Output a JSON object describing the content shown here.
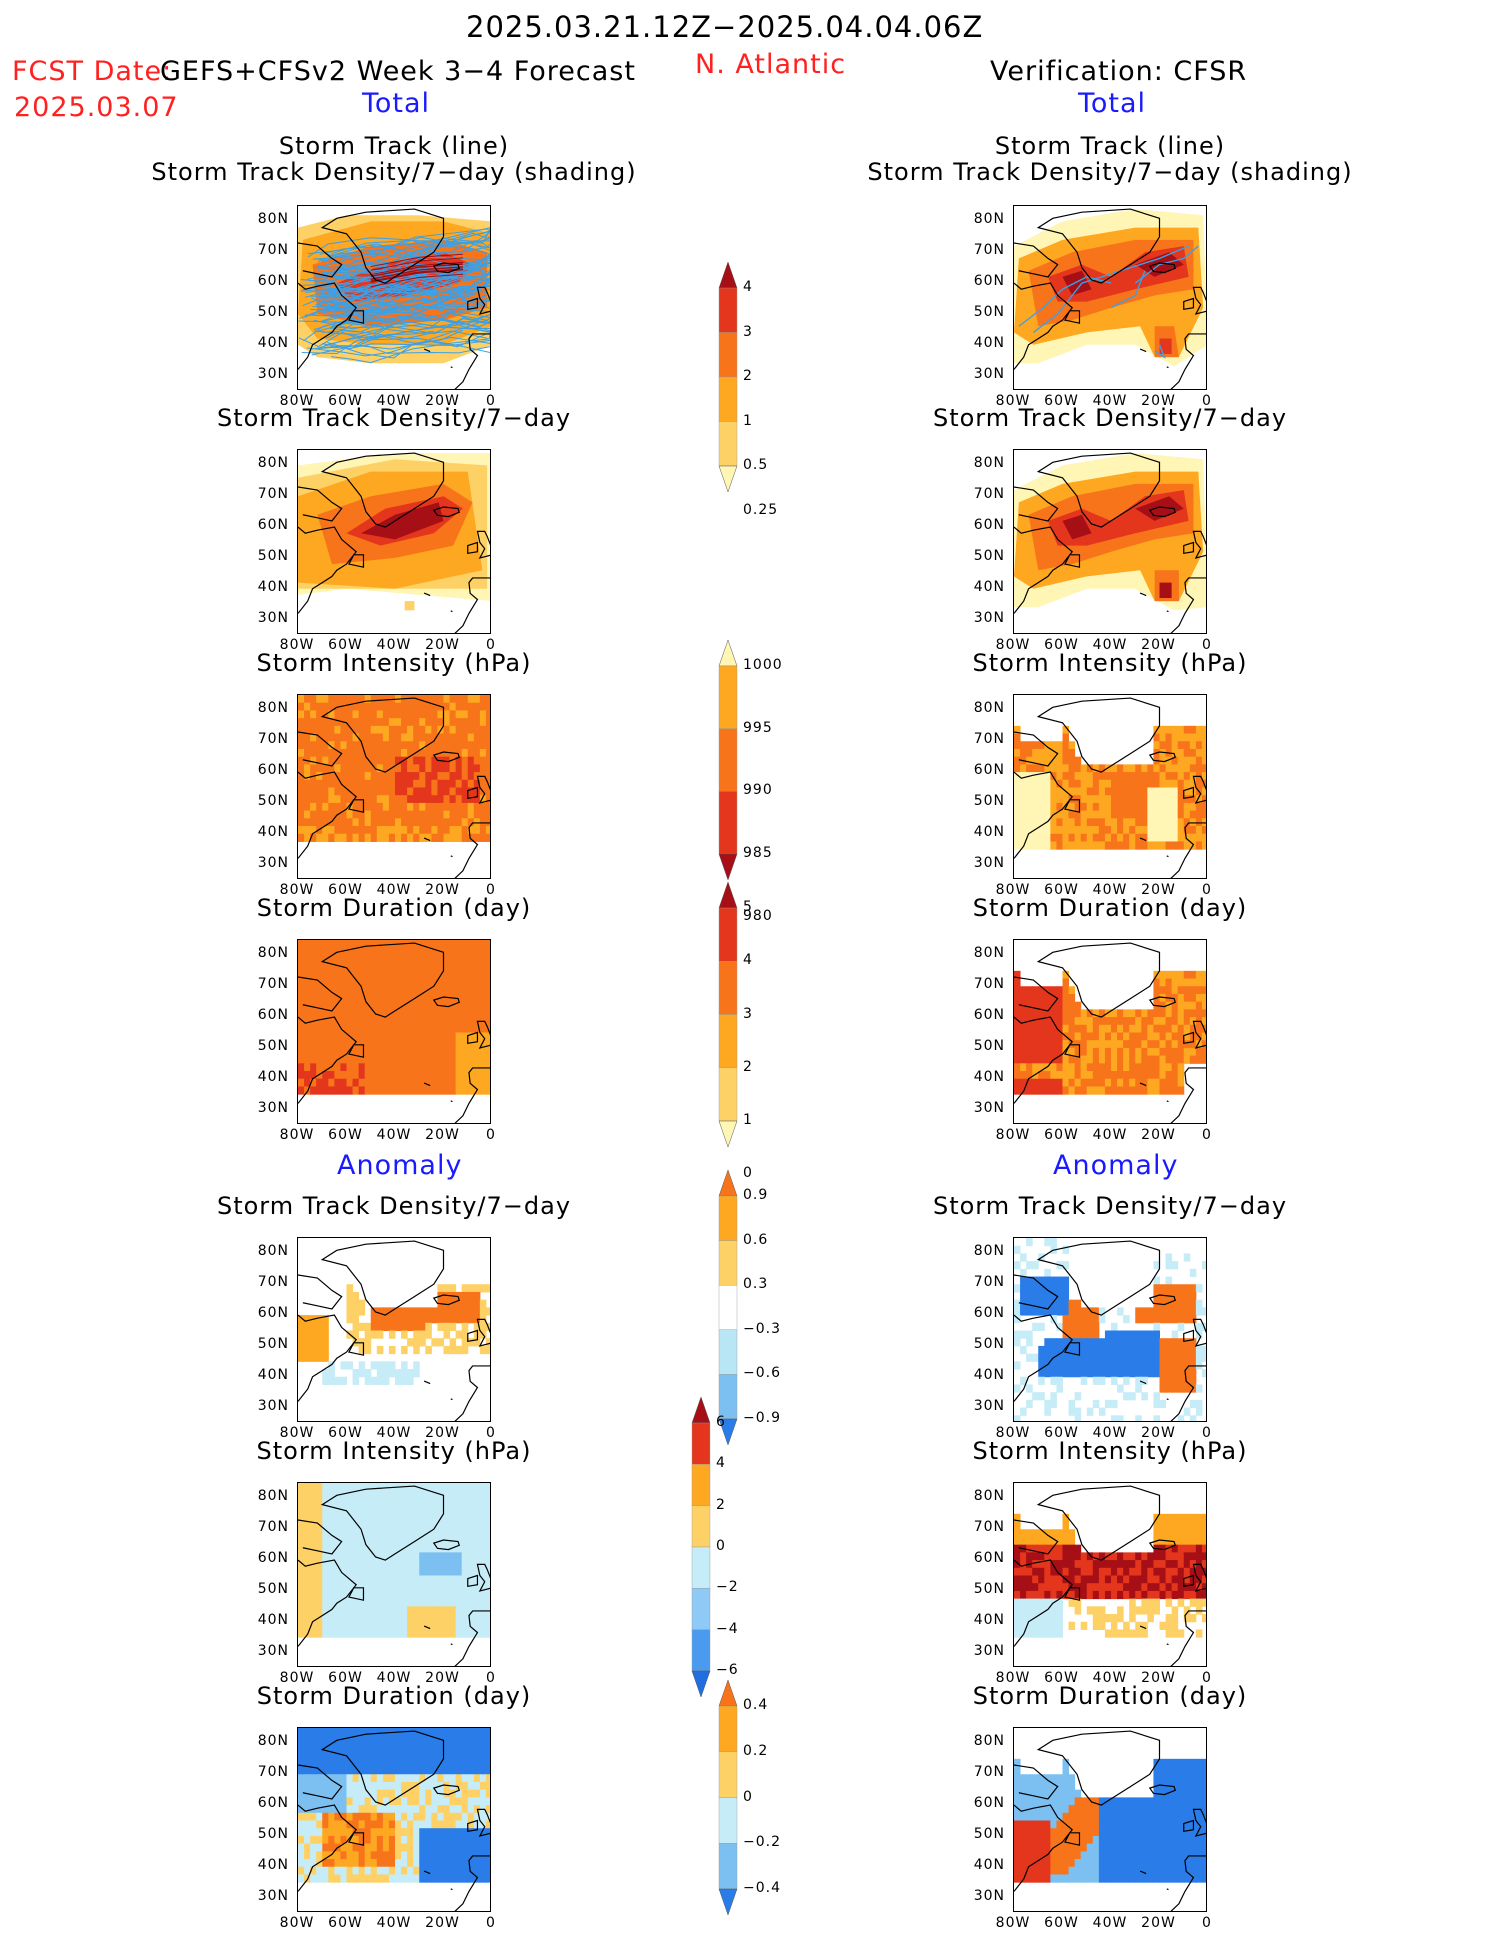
{
  "header": {
    "period": "2025.03.21.12Z−2025.04.04.06Z",
    "fcst_label": "FCST Date:",
    "fcst_model": "GEFS+CFSv2 Week 3−4 Forecast",
    "fcst_date": "2025.03.07",
    "region": "N. Atlantic",
    "verification": "Verification: CFSR",
    "total_left": "Total",
    "total_right": "Total",
    "anomaly_left": "Anomaly",
    "anomaly_right": "Anomaly"
  },
  "panel_titles": {
    "track_line": "Storm Track (line)",
    "track_shading": "Storm Track Density/7−day (shading)",
    "density": "Storm Track Density/7−day",
    "intensity": "Storm Intensity (hPa)",
    "duration": "Storm Duration (day)"
  },
  "axes": {
    "lat_ticks": [
      "80N",
      "70N",
      "60N",
      "50N",
      "40N",
      "30N"
    ],
    "lon_ticks": [
      "80W",
      "60W",
      "40W",
      "20W",
      "0"
    ]
  },
  "colorbars": {
    "density": {
      "labels": [
        "4",
        "3",
        "2",
        "1",
        "0.5",
        "0.25"
      ],
      "colors": [
        "#a50f15",
        "#e3361c",
        "#f8741b",
        "#fda820",
        "#fdd165",
        "#fff5b5"
      ]
    },
    "intensity": {
      "labels": [
        "1000",
        "995",
        "990",
        "985",
        "980"
      ],
      "colors": [
        "#fff5b5",
        "#fda820",
        "#f8741b",
        "#e3361c",
        "#a50f15"
      ]
    },
    "duration": {
      "labels": [
        "5",
        "4",
        "3",
        "2",
        "1",
        "0"
      ],
      "colors": [
        "#a50f15",
        "#e3361c",
        "#f8741b",
        "#fda820",
        "#fdd165",
        "#fff5b5"
      ]
    },
    "density_anom": {
      "labels": [
        "0.9",
        "0.6",
        "0.3",
        "−0.3",
        "−0.6",
        "−0.9"
      ],
      "colors": [
        "#f8741b",
        "#fda820",
        "#fdd165",
        "#ffffff",
        "#b8e6f5",
        "#7cc0f2",
        "#2a7de8"
      ]
    },
    "intensity_anom": {
      "labels": [
        "6",
        "4",
        "2",
        "0",
        "−2",
        "−4",
        "−6"
      ],
      "colors": [
        "#a50f15",
        "#e3361c",
        "#fda820",
        "#fdd165",
        "#c6ecf8",
        "#8fc9f5",
        "#4a9af0",
        "#1f6fe0"
      ]
    },
    "duration_anom": {
      "labels": [
        "0.4",
        "0.2",
        "0",
        "−0.2",
        "−0.4"
      ],
      "colors": [
        "#f8741b",
        "#fda820",
        "#fdd165",
        "#c6ecf8",
        "#7cc0f2",
        "#2a7de8"
      ]
    }
  },
  "colors": {
    "dark_red": "#a50f15",
    "red": "#e3361c",
    "orange": "#f8741b",
    "light_orange": "#fda820",
    "yellow": "#fdd165",
    "pale_yellow": "#fff5b5",
    "pale_blue": "#c6ecf8",
    "mid_blue": "#7cc0f2",
    "blue": "#2a7de8",
    "track_line": "#3aa0e8"
  }
}
